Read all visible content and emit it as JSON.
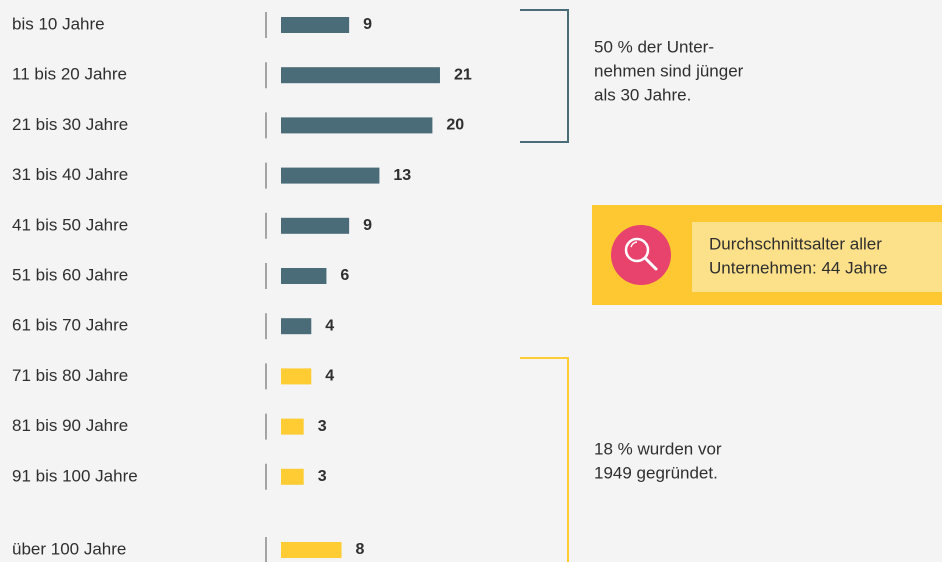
{
  "chart_data": {
    "type": "bar",
    "orientation": "horizontal",
    "categories": [
      "bis 10 Jahre",
      "11 bis 20 Jahre",
      "21 bis 30 Jahre",
      "31 bis 40 Jahre",
      "41 bis 50 Jahre",
      "51 bis 60 Jahre",
      "61 bis 70 Jahre",
      "71 bis 80 Jahre",
      "81 bis 90 Jahre",
      "91 bis 100 Jahre",
      "über 100 Jahre"
    ],
    "values": [
      9,
      21,
      20,
      13,
      9,
      6,
      4,
      4,
      3,
      3,
      8
    ],
    "colors": [
      "#4a6b78",
      "#4a6b78",
      "#4a6b78",
      "#4a6b78",
      "#4a6b78",
      "#4a6b78",
      "#4a6b78",
      "#ffcc33",
      "#ffcc33",
      "#ffcc33",
      "#ffcc33"
    ],
    "annotations": [
      {
        "lines": [
          "50 % der Unter-",
          "nehmen sind jünger",
          "als 30 Jahre."
        ],
        "color": "#4a6b78"
      },
      {
        "lines": [
          "18 % wurden vor",
          "1949 gegründet."
        ],
        "color": "#ffcc33"
      }
    ],
    "callout": {
      "lines": [
        "Durchschnittsalter aller",
        "Unternehmen: 44 Jahre"
      ]
    }
  }
}
